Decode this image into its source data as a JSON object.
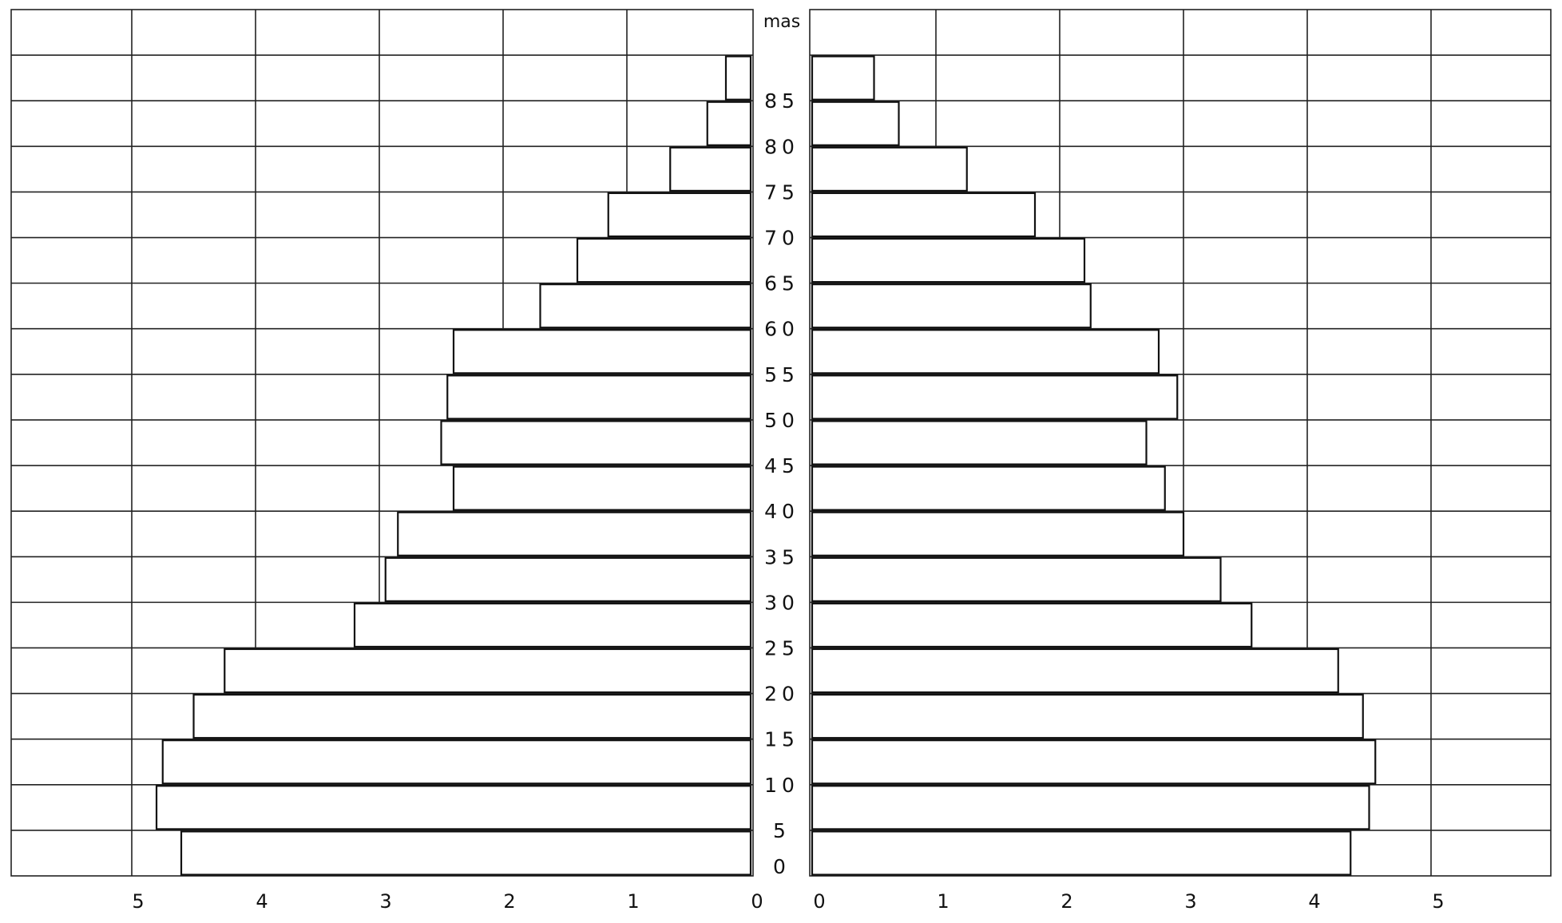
{
  "chart_data": {
    "type": "bar",
    "orientation": "horizontal-pyramid",
    "title": "",
    "age_labels": [
      "0",
      "5",
      "10",
      "15",
      "20",
      "25",
      "30",
      "35",
      "40",
      "45",
      "50",
      "55",
      "60",
      "65",
      "70",
      "75",
      "80",
      "85",
      "mas"
    ],
    "series": [
      {
        "side": "left",
        "values": [
          4.6,
          4.8,
          4.75,
          4.5,
          4.25,
          3.2,
          2.95,
          2.85,
          2.4,
          2.5,
          2.45,
          2.4,
          1.7,
          1.4,
          1.15,
          0.65,
          0.35,
          0.2
        ]
      },
      {
        "side": "right",
        "values": [
          4.35,
          4.5,
          4.55,
          4.45,
          4.25,
          3.55,
          3.3,
          3.0,
          2.85,
          2.7,
          2.95,
          2.8,
          2.25,
          2.2,
          1.8,
          1.25,
          0.7,
          0.5
        ]
      }
    ],
    "left_axis": {
      "ticks": [
        "5",
        "4",
        "3",
        "2",
        "1",
        "0"
      ],
      "xlim": [
        5,
        0
      ]
    },
    "right_axis": {
      "ticks": [
        "0",
        "1",
        "2",
        "3",
        "4",
        "5"
      ],
      "xlim": [
        0,
        5
      ]
    },
    "grid": true,
    "hatching": "vertical"
  }
}
